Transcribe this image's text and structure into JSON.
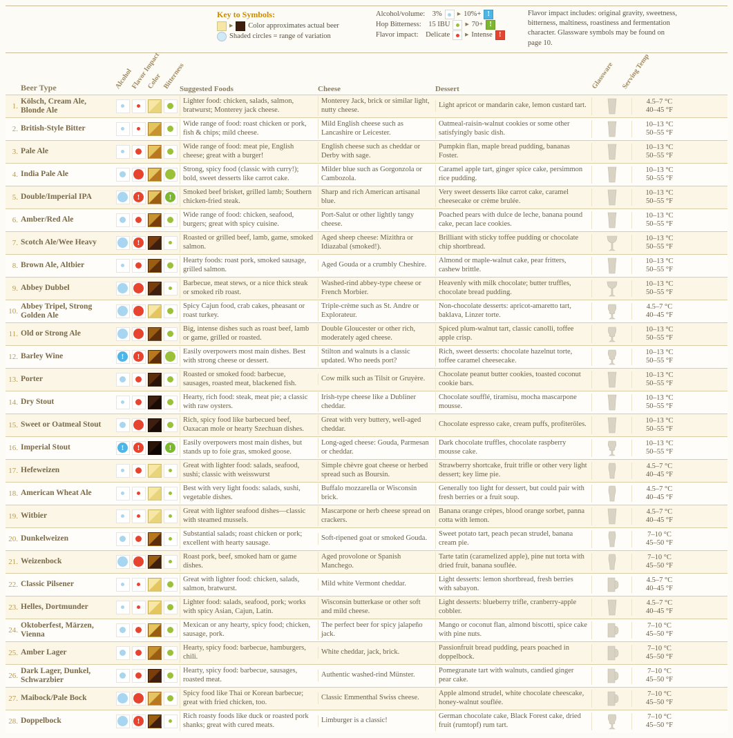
{
  "colors": {
    "alcohol": "#a8d5ef",
    "flavor": "#e74430",
    "bitterness": "#9bc13b",
    "bang_alcohol": "#4fb5e6",
    "bang_bitter": "#7cb82f",
    "gradient_light": "#f6e7a5",
    "gradient_dark": "#3e1e0e"
  },
  "legend": {
    "key_title": "Key to Symbols:",
    "color_approx": "Color approximates actual beer",
    "shaded": "Shaded circles = range of variation",
    "abv_label": "Alcohol/volume:",
    "abv_low": "3%",
    "abv_high": "10%+",
    "hop_label": "Hop Bitterness:",
    "hop_low": "15 IBU",
    "hop_high": "70+",
    "flavor_label": "Flavor impact:",
    "flavor_low": "Delicate",
    "flavor_high": "Intense",
    "flavor_note": "Flavor impact includes: original gravity, sweetness, bitterness, maltiness, roastiness and fermentation character. Glassware symbols may be found on page 10."
  },
  "headers": {
    "beer_type": "Beer Type",
    "alcohol": "Alcohol",
    "flavor": "Flavor Impact",
    "color": "Color",
    "bitterness": "Bitterness",
    "foods": "Suggested Foods",
    "cheese": "Cheese",
    "dessert": "Dessert",
    "glassware": "Glassware",
    "temp": "Serving Temp"
  },
  "rows": [
    {
      "n": "1.",
      "name": "Kölsch, Cream Ale, Blonde Ale",
      "alc": "sm",
      "flv": "sm",
      "col1": "#f6e7a5",
      "col2": "#e8d47a",
      "bit": "md",
      "food": "Lighter food: chicken, salads, salmon, bratwurst; Monterey jack cheese.",
      "cheese": "Monterey Jack, brick or similar light, nutty cheese.",
      "dessert": "Light apricot or mandarin cake, lemon custard tart.",
      "glass": "tumbler",
      "t1": "4.5–7 °C",
      "t2": "40–45 °F"
    },
    {
      "n": "2.",
      "name": "British-Style Bitter",
      "alc": "sm",
      "flv": "sm",
      "col1": "#e4c560",
      "col2": "#c79330",
      "bit": "md",
      "food": "Wide range of food: roast chicken or pork, fish & chips; mild cheese.",
      "cheese": "Mild English cheese such as Lancashire or Leicester.",
      "dessert": "Oatmeal-raisin-walnut cookies or some other satisfyingly basic dish.",
      "glass": "pint",
      "t1": "10–13 °C",
      "t2": "50–55 °F"
    },
    {
      "n": "3.",
      "name": "Pale Ale",
      "alc": "sm",
      "flv": "md",
      "col1": "#e4c560",
      "col2": "#b87820",
      "bit": "md",
      "food": "Wide range of food: meat pie, English cheese; great with a burger!",
      "cheese": "English cheese such as cheddar or Derby with sage.",
      "dessert": "Pumpkin flan, maple bread pudding, bananas Foster.",
      "glass": "pint",
      "t1": "10–13 °C",
      "t2": "50–55 °F"
    },
    {
      "n": "4.",
      "name": "India Pale Ale",
      "alc": "md",
      "flv": "lg",
      "col1": "#e4c560",
      "col2": "#b87820",
      "bit": "lg",
      "food": "Strong, spicy food (classic with curry!); bold, sweet desserts like carrot cake.",
      "cheese": "Milder blue such as Gorgonzola or Cambozola.",
      "dessert": "Caramel apple tart, ginger spice cake, persimmon rice pudding.",
      "glass": "pint",
      "t1": "10–13 °C",
      "t2": "50–55 °F"
    },
    {
      "n": "5.",
      "name": "Double/Imperial IPA",
      "alc": "lg",
      "flv": "bang",
      "col1": "#e4c560",
      "col2": "#9a5e12",
      "bit": "bang",
      "food": "Smoked beef brisket, grilled lamb; Southern chicken-fried steak.",
      "cheese": "Sharp and rich American artisanal blue.",
      "dessert": "Very sweet desserts like carrot cake, caramel cheesecake or crème brulée.",
      "glass": "tumbler",
      "t1": "10–13 °C",
      "t2": "50–55 °F"
    },
    {
      "n": "6.",
      "name": "Amber/Red Ale",
      "alc": "md",
      "flv": "md",
      "col1": "#c79330",
      "col2": "#7a3e0c",
      "bit": "md",
      "food": "Wide range of food: chicken, seafood, burgers; great with spicy cuisine.",
      "cheese": "Port-Salut or other lightly tangy cheese.",
      "dessert": "Poached pears with dulce de leche, banana pound cake, pecan lace cookies.",
      "glass": "pint",
      "t1": "10–13 °C",
      "t2": "50–55 °F"
    },
    {
      "n": "7.",
      "name": "Scotch Ale/Wee Heavy",
      "alc": "lg",
      "flv": "bang",
      "col1": "#7a3e0c",
      "col2": "#3e1e0e",
      "bit": "sm",
      "food": "Roasted or grilled beef, lamb, game, smoked salmon.",
      "cheese": "Aged sheep cheese: Mizithra or Idiazabal (smoked!).",
      "dessert": "Brilliant with sticky toffee pudding or chocolate chip shortbread.",
      "glass": "goblet",
      "t1": "10–13 °C",
      "t2": "50–55 °F"
    },
    {
      "n": "8.",
      "name": "Brown Ale, Altbier",
      "alc": "sm",
      "flv": "md",
      "col1": "#9a5e12",
      "col2": "#5c2f0a",
      "bit": "md",
      "food": "Hearty foods: roast pork, smoked sausage, grilled salmon.",
      "cheese": "Aged Gouda or a crumbly Cheshire.",
      "dessert": "Almond or maple-walnut cake, pear fritters, cashew brittle.",
      "glass": "pint",
      "t1": "10–13 °C",
      "t2": "50–55 °F"
    },
    {
      "n": "9.",
      "name": "Abbey Dubbel",
      "alc": "lg",
      "flv": "lg",
      "col1": "#7a3e0c",
      "col2": "#3e1e0e",
      "bit": "sm",
      "food": "Barbecue, meat stews, or a nice thick steak or smoked rib roast.",
      "cheese": "Washed-rind abbey-type cheese or French Morbier.",
      "dessert": "Heavenly with milk chocolate; butter truffles, chocolate bread pudding.",
      "glass": "goblet",
      "t1": "10–13 °C",
      "t2": "50–55 °F"
    },
    {
      "n": "10.",
      "name": "Abbey Tripel, Strong Golden Ale",
      "alc": "lg",
      "flv": "lg",
      "col1": "#f6e7a5",
      "col2": "#e4c560",
      "bit": "md",
      "food": "Spicy Cajun food, crab cakes, pheasant or roast turkey.",
      "cheese": "Triple-crème such as St. Andre or Explorateur.",
      "dessert": "Non-chocolate desserts: apricot-amaretto tart, baklava, Linzer torte.",
      "glass": "tulip",
      "t1": "4.5–7 °C",
      "t2": "40–45 °F"
    },
    {
      "n": "11.",
      "name": "Old or Strong Ale",
      "alc": "lg",
      "flv": "lg",
      "col1": "#9a5e12",
      "col2": "#5c2f0a",
      "bit": "md",
      "food": "Big, intense dishes such as roast beef, lamb or game, grilled or roasted.",
      "cheese": "Double Gloucester or other rich, moderately aged cheese.",
      "dessert": "Spiced plum-walnut tart, classic canolli, toffee apple crisp.",
      "glass": "tulip",
      "t1": "10–13 °C",
      "t2": "50–55 °F"
    },
    {
      "n": "12.",
      "name": "Barley Wine",
      "alc": "bang",
      "flv": "bang",
      "col1": "#b87820",
      "col2": "#5c2f0a",
      "bit": "lg",
      "food": "Easily overpowers most main dishes. Best with strong cheese or dessert.",
      "cheese": "Stilton and walnuts is a classic updated. Who needs port?",
      "dessert": "Rich, sweet desserts: chocolate hazelnut torte, toffee caramel cheesecake.",
      "glass": "tulip",
      "t1": "10–13 °C",
      "t2": "50–55 °F"
    },
    {
      "n": "13.",
      "name": "Porter",
      "alc": "md",
      "flv": "md",
      "col1": "#5c2f0a",
      "col2": "#2a1408",
      "bit": "md",
      "food": "Roasted or smoked food: barbecue, sausages, roasted meat, blackened fish.",
      "cheese": "Cow milk such as Tilsit or Gruyère.",
      "dessert": "Chocolate peanut butter cookies, toasted coconut cookie bars.",
      "glass": "pint",
      "t1": "10–13 °C",
      "t2": "50–55 °F"
    },
    {
      "n": "14.",
      "name": "Dry Stout",
      "alc": "sm",
      "flv": "md",
      "col1": "#3e1e0e",
      "col2": "#1a0b05",
      "bit": "md",
      "food": "Hearty, rich food: steak, meat pie; a classic with raw oysters.",
      "cheese": "Irish-type cheese like a Dubliner cheddar.",
      "dessert": "Chocolate soufflé, tiramisu, mocha mascarpone mousse.",
      "glass": "pint",
      "t1": "10–13 °C",
      "t2": "50–55 °F"
    },
    {
      "n": "15.",
      "name": "Sweet or Oatmeal Stout",
      "alc": "md",
      "flv": "lg",
      "col1": "#3e1e0e",
      "col2": "#1a0b05",
      "bit": "md",
      "food": "Rich, spicy food like barbecued beef, Oaxacan mole or hearty Szechuan dishes.",
      "cheese": "Great with very buttery, well-aged cheddar.",
      "dessert": "Chocolate espresso cake, cream puffs, profiteröles.",
      "glass": "pint",
      "t1": "10–13 °C",
      "t2": "50–55 °F"
    },
    {
      "n": "16.",
      "name": "Imperial Stout",
      "alc": "bang",
      "flv": "bang",
      "col1": "#2a1408",
      "col2": "#0e0603",
      "bit": "bang",
      "food": "Easily overpowers most main dishes, but stands up to foie gras, smoked goose.",
      "cheese": "Long-aged cheese: Gouda, Parmesan or cheddar.",
      "dessert": "Dark chocolate truffles, chocolate raspberry mousse cake.",
      "glass": "tulip",
      "t1": "10–13 °C",
      "t2": "50–55 °F"
    },
    {
      "n": "17.",
      "name": "Hefeweizen",
      "alc": "sm",
      "flv": "md",
      "col1": "#f6e7a5",
      "col2": "#e8d47a",
      "bit": "sm",
      "food": "Great with lighter food: salads, seafood, sushi; classic with weisswurst",
      "cheese": "Simple chèvre goat cheese or herbed spread such as Boursin.",
      "dessert": "Strawberry shortcake, fruit trifle or other very light dessert; key lime pie.",
      "glass": "weizen",
      "t1": "4.5–7 °C",
      "t2": "40–45 °F"
    },
    {
      "n": "18.",
      "name": "American Wheat Ale",
      "alc": "sm",
      "flv": "sm",
      "col1": "#f6e7a5",
      "col2": "#e8d47a",
      "bit": "sm",
      "food": "Best with very light foods: salads, sushi, vegetable dishes.",
      "cheese": "Buffalo mozzarella or Wisconsin brick.",
      "dessert": "Generally too light for dessert, but could pair with fresh berries or a fruit soup.",
      "glass": "weizen",
      "t1": "4.5–7 °C",
      "t2": "40–45 °F"
    },
    {
      "n": "19.",
      "name": "Witbier",
      "alc": "sm",
      "flv": "sm",
      "col1": "#f6e7a5",
      "col2": "#e8d47a",
      "bit": "sm",
      "food": "Great with lighter seafood dishes—classic with steamed mussels.",
      "cheese": "Mascarpone or herb cheese spread on crackers.",
      "dessert": "Banana orange crèpes, blood orange sorbet, panna cotta with lemon.",
      "glass": "tumbler",
      "t1": "4.5–7 °C",
      "t2": "40–45 °F"
    },
    {
      "n": "20.",
      "name": "Dunkelweizen",
      "alc": "md",
      "flv": "md",
      "col1": "#b87820",
      "col2": "#5c2f0a",
      "bit": "sm",
      "food": "Substantial salads; roast chicken or pork; excellent with hearty sausage.",
      "cheese": "Soft-ripened goat or smoked Gouda.",
      "dessert": "Sweet potato tart, peach pecan strudel, banana cream pie.",
      "glass": "weizen",
      "t1": "7–10 °C",
      "t2": "45–50 °F"
    },
    {
      "n": "21.",
      "name": "Weizenbock",
      "alc": "lg",
      "flv": "lg",
      "col1": "#9a5e12",
      "col2": "#3e1e0e",
      "bit": "sm",
      "food": "Roast pork, beef, smoked ham or game dishes.",
      "cheese": "Aged provolone or Spanish Manchego.",
      "dessert": "Tarte tatin (caramelized apple), pine nut torta with dried fruit, banana souflée.",
      "glass": "weizen",
      "t1": "7–10 °C",
      "t2": "45–50 °F"
    },
    {
      "n": "22.",
      "name": "Classic Pilsener",
      "alc": "sm",
      "flv": "sm",
      "col1": "#f6e7a5",
      "col2": "#e4c560",
      "bit": "md",
      "food": "Great with lighter food: chicken, salads, salmon, bratwurst.",
      "cheese": "Mild white Vermont cheddar.",
      "dessert": "Light desserts: lemon shortbread, fresh berries with sabayon.",
      "glass": "mug",
      "t1": "4.5–7 °C",
      "t2": "40–45 °F"
    },
    {
      "n": "23.",
      "name": "Helles, Dortmunder",
      "alc": "sm",
      "flv": "sm",
      "col1": "#f6e7a5",
      "col2": "#e4c560",
      "bit": "md",
      "food": "Lighter food: salads, seafood, pork; works with spicy Asian, Cajun, Latin.",
      "cheese": "Wisconsin butterkase or other soft and mild cheese.",
      "dessert": "Light desserts: blueberry trifle, cranberry-apple cobbler.",
      "glass": "tumbler",
      "t1": "4.5–7 °C",
      "t2": "40–45 °F"
    },
    {
      "n": "24.",
      "name": "Oktoberfest, Märzen, Vienna",
      "alc": "md",
      "flv": "md",
      "col1": "#e4c560",
      "col2": "#9a5e12",
      "bit": "md",
      "food": "Mexican or any hearty, spicy food; chicken, sausage, pork.",
      "cheese": "The perfect beer for spicy jalapeño jack.",
      "dessert": "Mango or coconut flan, almond biscotti, spice cake with pine nuts.",
      "glass": "mug",
      "t1": "7–10 °C",
      "t2": "45–50 °F"
    },
    {
      "n": "25.",
      "name": "Amber Lager",
      "alc": "md",
      "flv": "md",
      "col1": "#c79330",
      "col2": "#9a5e12",
      "bit": "md",
      "food": "Hearty, spicy food: barbecue, hamburgers, chili.",
      "cheese": "White cheddar, jack, brick.",
      "dessert": "Passionfruit bread pudding, pears poached in doppelbock.",
      "glass": "mug",
      "t1": "7–10 °C",
      "t2": "45–50 °F"
    },
    {
      "n": "26.",
      "name": "Dark Lager, Dunkel, Schwarzbier",
      "alc": "md",
      "flv": "md",
      "col1": "#7a3e0c",
      "col2": "#3e1e0e",
      "bit": "md",
      "food": "Hearty, spicy food: barbecue, sausages, roasted meat.",
      "cheese": "Authentic washed-rind Münster.",
      "dessert": "Pomegranate tart with walnuts, candied ginger pear cake.",
      "glass": "mug",
      "t1": "7–10 °C",
      "t2": "45–50 °F"
    },
    {
      "n": "27.",
      "name": "Maibock/Pale Bock",
      "alc": "lg",
      "flv": "lg",
      "col1": "#e4c560",
      "col2": "#b87820",
      "bit": "md",
      "food": "Spicy food like Thai or Korean barbecue; great with fried chicken, too.",
      "cheese": "Classic Emmenthal Swiss cheese.",
      "dessert": "Apple almond strudel, white chocolate cheescake, honey-walnut souflée.",
      "glass": "mug",
      "t1": "7–10 °C",
      "t2": "45–50 °F"
    },
    {
      "n": "28.",
      "name": "Doppelbock",
      "alc": "lg",
      "flv": "bang",
      "col1": "#9a5e12",
      "col2": "#3e1e0e",
      "bit": "sm",
      "food": "Rich roasty foods like duck or roasted pork shanks; great with cured meats.",
      "cheese": "Limburger is a classic!",
      "dessert": "German chocolate cake, Black Forest cake, dried fruit (rumtopf) rum tart.",
      "glass": "tulip",
      "t1": "7–10 °C",
      "t2": "45–50 °F"
    }
  ]
}
